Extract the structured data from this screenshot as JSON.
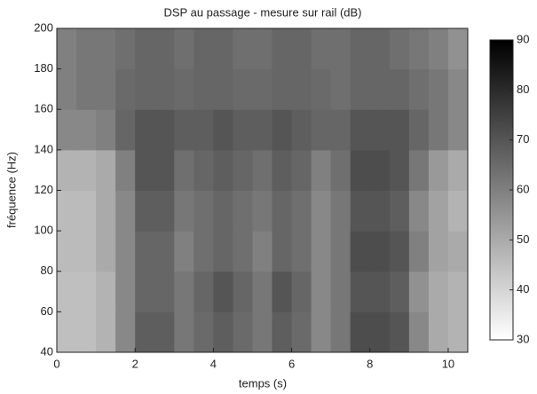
{
  "chart_data": {
    "type": "heatmap",
    "title": "DSP au passage - mesure sur rail (dB)",
    "xlabel": "temps (s)",
    "ylabel": "fréquence (Hz)",
    "x": [
      0.25,
      0.75,
      1.25,
      1.75,
      2.25,
      2.75,
      3.25,
      3.75,
      4.25,
      4.75,
      5.25,
      5.75,
      6.25,
      6.75,
      7.25,
      7.75,
      8.25,
      8.75,
      9.25,
      9.75,
      10.25
    ],
    "y": [
      50,
      70,
      90,
      110,
      130,
      150,
      170,
      190
    ],
    "values": [
      [
        45,
        45,
        48,
        58,
        68,
        68,
        62,
        65,
        68,
        65,
        62,
        68,
        65,
        58,
        62,
        72,
        72,
        70,
        58,
        50,
        48
      ],
      [
        45,
        45,
        48,
        58,
        66,
        66,
        62,
        66,
        70,
        66,
        62,
        70,
        66,
        58,
        62,
        70,
        70,
        68,
        56,
        50,
        48
      ],
      [
        46,
        46,
        50,
        58,
        66,
        66,
        60,
        64,
        66,
        64,
        60,
        66,
        64,
        58,
        62,
        72,
        72,
        70,
        60,
        52,
        50
      ],
      [
        46,
        46,
        50,
        58,
        68,
        68,
        62,
        64,
        66,
        64,
        62,
        66,
        64,
        58,
        62,
        70,
        70,
        68,
        58,
        52,
        48
      ],
      [
        48,
        48,
        50,
        60,
        70,
        70,
        64,
        66,
        68,
        66,
        64,
        68,
        66,
        60,
        64,
        72,
        72,
        70,
        62,
        54,
        50
      ],
      [
        58,
        58,
        60,
        66,
        70,
        70,
        68,
        68,
        70,
        68,
        68,
        70,
        68,
        66,
        66,
        70,
        70,
        70,
        66,
        62,
        58
      ],
      [
        60,
        62,
        62,
        65,
        66,
        66,
        65,
        66,
        66,
        65,
        65,
        66,
        66,
        65,
        64,
        66,
        66,
        66,
        64,
        62,
        58
      ],
      [
        60,
        62,
        62,
        64,
        66,
        66,
        64,
        66,
        66,
        64,
        64,
        66,
        66,
        64,
        64,
        66,
        66,
        64,
        62,
        60,
        56
      ]
    ],
    "colormap": "gray_r",
    "xlim": [
      0,
      10.5
    ],
    "xticks": [
      0,
      2,
      4,
      6,
      8,
      10
    ],
    "ylim": [
      40,
      200
    ],
    "yticks": [
      40,
      60,
      80,
      100,
      120,
      140,
      160,
      180,
      200
    ],
    "clim": [
      30,
      90
    ],
    "cticks": [
      30,
      40,
      50,
      60,
      70,
      80,
      90
    ]
  }
}
